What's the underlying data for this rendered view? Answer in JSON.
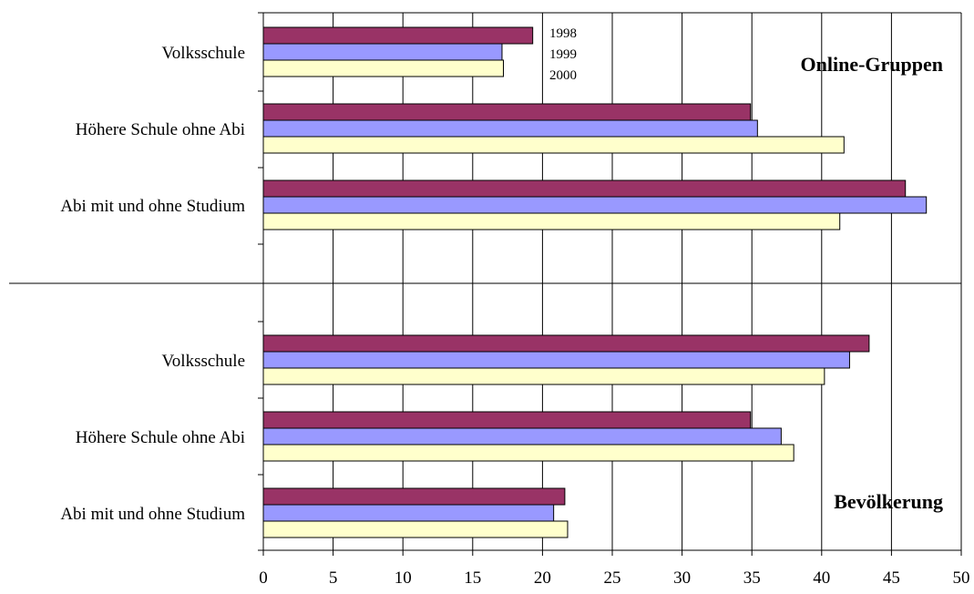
{
  "chart_data": {
    "type": "bar",
    "orientation": "horizontal",
    "xlim": [
      0,
      50
    ],
    "x_ticks": [
      0,
      5,
      10,
      15,
      20,
      25,
      30,
      35,
      40,
      45,
      50
    ],
    "grid": true,
    "legend_position": "top, next to first group",
    "series": [
      {
        "name": "1998",
        "color": "#993366"
      },
      {
        "name": "1999",
        "color": "#9999FF"
      },
      {
        "name": "2000",
        "color": "#FFFFCC"
      }
    ],
    "groups": [
      {
        "title": "Online-Gruppen",
        "categories": [
          {
            "label": "Volksschule",
            "values": [
              19.3,
              17.1,
              17.2
            ]
          },
          {
            "label": "Höhere Schule ohne Abi",
            "values": [
              34.9,
              35.4,
              41.6
            ]
          },
          {
            "label": "Abi mit und ohne Studium",
            "values": [
              46.0,
              47.5,
              41.3
            ]
          }
        ]
      },
      {
        "title": "Bevölkerung",
        "categories": [
          {
            "label": "Volksschule",
            "values": [
              43.4,
              42.0,
              40.2
            ]
          },
          {
            "label": "Höhere Schule ohne Abi",
            "values": [
              34.9,
              37.1,
              38.0
            ]
          },
          {
            "label": "Abi mit und ohne Studium",
            "values": [
              21.6,
              20.8,
              21.8
            ]
          }
        ]
      }
    ]
  }
}
